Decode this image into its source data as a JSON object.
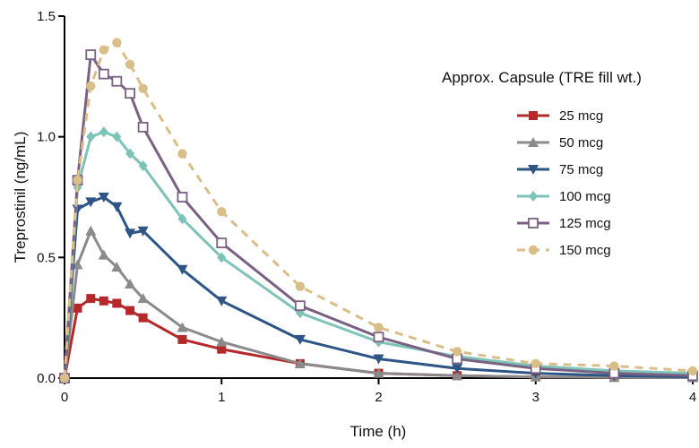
{
  "chart_data": {
    "type": "line",
    "title": "",
    "xlabel": "Time (h)",
    "ylabel": "Treprostinil (ng/mL)",
    "xlim": [
      0,
      4
    ],
    "ylim": [
      0,
      1.5
    ],
    "xticks": [
      "0",
      "1",
      "2",
      "3",
      "4"
    ],
    "yticks": [
      "0.0",
      "0.5",
      "1.0",
      "1.5"
    ],
    "grid": false,
    "legend": {
      "title": "Approx. Capsule (TRE fill wt.)",
      "placement": "right"
    },
    "x": [
      0,
      0.083,
      0.167,
      0.25,
      0.333,
      0.417,
      0.5,
      0.75,
      1,
      1.5,
      2,
      2.5,
      3,
      3.5,
      4
    ],
    "series": [
      {
        "name": "25 mcg",
        "color": "#b5292b",
        "marker": "square",
        "dashed": false,
        "values": [
          0,
          0.29,
          0.33,
          0.32,
          0.31,
          0.28,
          0.25,
          0.16,
          0.12,
          0.06,
          0.02,
          0.01,
          0.005,
          0.003,
          0.002
        ]
      },
      {
        "name": "50 mcg",
        "color": "#8a8a8a",
        "marker": "triangle-up",
        "dashed": false,
        "values": [
          0,
          0.47,
          0.61,
          0.51,
          0.46,
          0.39,
          0.33,
          0.21,
          0.15,
          0.06,
          0.02,
          0.01,
          0.005,
          0.003,
          0.002
        ]
      },
      {
        "name": "75 mcg",
        "color": "#2d5586",
        "marker": "triangle-down",
        "dashed": false,
        "values": [
          0,
          0.7,
          0.73,
          0.75,
          0.71,
          0.6,
          0.61,
          0.45,
          0.32,
          0.16,
          0.08,
          0.04,
          0.02,
          0.01,
          0.005
        ]
      },
      {
        "name": "100 mcg",
        "color": "#7dc3b7",
        "marker": "diamond",
        "dashed": false,
        "values": [
          0,
          0.79,
          1.0,
          1.02,
          1.0,
          0.93,
          0.88,
          0.66,
          0.5,
          0.27,
          0.15,
          0.09,
          0.05,
          0.03,
          0.02
        ]
      },
      {
        "name": "125 mcg",
        "color": "#7a6183",
        "marker": "square-open",
        "dashed": false,
        "values": [
          0,
          0.82,
          1.34,
          1.26,
          1.23,
          1.18,
          1.04,
          0.75,
          0.56,
          0.3,
          0.17,
          0.08,
          0.04,
          0.02,
          0.01
        ]
      },
      {
        "name": "150 mcg",
        "color": "#d9be88",
        "marker": "circle",
        "dashed": true,
        "values": [
          0,
          0.82,
          1.21,
          1.36,
          1.39,
          1.3,
          1.2,
          0.93,
          0.69,
          0.38,
          0.21,
          0.11,
          0.06,
          0.05,
          0.03
        ]
      }
    ]
  }
}
